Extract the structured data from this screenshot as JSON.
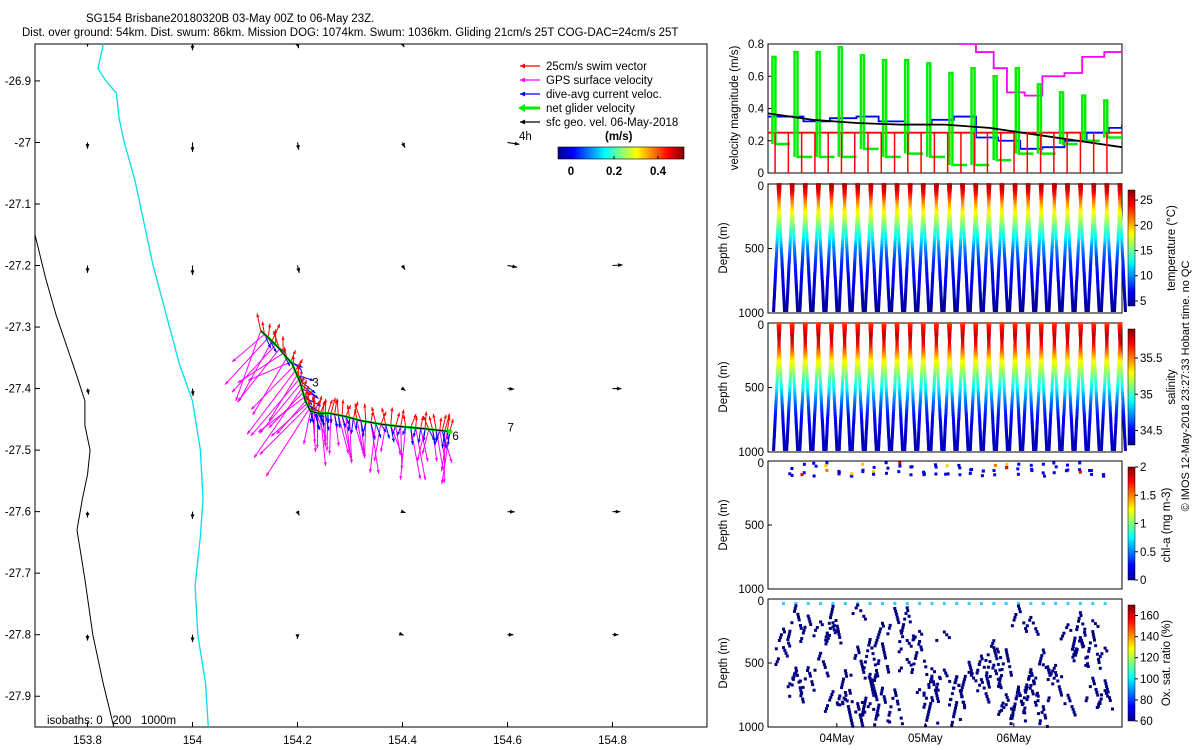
{
  "figure": {
    "title_line1": "SG154 Brisbane20180320B 03-May 00Z to 06-May 23Z.",
    "title_line2": "Dist. over ground: 54km. Dist. swum: 86km. Mission DOG: 1074km. Swum: 1036km. Gliding 21cm/s 25T COG-DAC=24cm/s 25T",
    "copyright": "© IMOS 12-May-2018 23:27:33 Hobart time. no QC",
    "colors": {
      "swim": "#ff0000",
      "gps": "#ff00ff",
      "dac": "#0000ff",
      "net": "#00ee00",
      "geo": "#000000",
      "coast": "#00ddee",
      "iso": "#000000"
    }
  },
  "chart_data": [
    {
      "id": "map",
      "type": "scatter",
      "title": "glider track map",
      "xlabel": "",
      "ylabel": "",
      "xlim": [
        153.7,
        154.98
      ],
      "ylim": [
        -27.95,
        -26.84
      ],
      "x_ticks": [
        153.8,
        154,
        154.2,
        154.4,
        154.6,
        154.8
      ],
      "x_tick_labels": [
        "153.8",
        "154",
        "154.2",
        "154.4",
        "154.6",
        "154.8"
      ],
      "y_ticks": [
        -26.9,
        -27,
        -27.1,
        -27.2,
        -27.3,
        -27.4,
        -27.5,
        -27.6,
        -27.7,
        -27.8,
        -27.9
      ],
      "y_tick_labels": [
        "-26.9",
        "-27",
        "-27.1",
        "-27.2",
        "-27.3",
        "-27.4",
        "-27.5",
        "-27.6",
        "-27.7",
        "-27.8",
        "-27.9"
      ],
      "legend": {
        "placement": "top-right",
        "entries": [
          "25cm/s swim vector",
          "GPS surface velocity",
          "dive-avg current veloc.",
          "net glider velocity",
          "sfc geo. vel. 06-May-2018"
        ],
        "time_label": "4h"
      },
      "colorbar": {
        "label": "(m/s)",
        "ticks": [
          "0",
          "0.2",
          "0.4"
        ],
        "range": [
          0,
          0.5
        ]
      },
      "isobath_label": "isobaths: 0   200   1000m",
      "track": {
        "lon": [
          154.13,
          154.16,
          154.19,
          154.205,
          154.215,
          154.225,
          154.24,
          154.26,
          154.29,
          154.32,
          154.36,
          154.4,
          154.44,
          154.47,
          154.49
        ],
        "lat": [
          -27.306,
          -27.33,
          -27.36,
          -27.39,
          -27.42,
          -27.437,
          -27.44,
          -27.44,
          -27.445,
          -27.452,
          -27.458,
          -27.462,
          -27.465,
          -27.468,
          -27.47
        ]
      },
      "day_markers": [
        {
          "label": "3",
          "lon": 154.228,
          "lat": -27.39
        },
        {
          "label": "6",
          "lon": 154.495,
          "lat": -27.477
        },
        {
          "label": "7",
          "lon": 154.6,
          "lat": -27.463
        }
      ],
      "geo_vectors": [
        {
          "lon": 153.8,
          "lat": -26.84,
          "u": 0,
          "v": -0.12
        },
        {
          "lon": 154.0,
          "lat": -26.84,
          "u": 0,
          "v": -0.3
        },
        {
          "lon": 154.2,
          "lat": -26.84,
          "u": 0.02,
          "v": -0.2
        },
        {
          "lon": 154.4,
          "lat": -26.84,
          "u": 0.03,
          "v": -0.15
        },
        {
          "lon": 153.8,
          "lat": -27.0,
          "u": 0,
          "v": -0.3
        },
        {
          "lon": 154.0,
          "lat": -27.0,
          "u": 0,
          "v": -0.45
        },
        {
          "lon": 154.2,
          "lat": -27.0,
          "u": 0.02,
          "v": -0.35
        },
        {
          "lon": 154.4,
          "lat": -27.0,
          "u": 0.04,
          "v": -0.25
        },
        {
          "lon": 154.6,
          "lat": -27.0,
          "u": 0.2,
          "v": -0.09
        },
        {
          "lon": 153.8,
          "lat": -27.2,
          "u": 0,
          "v": -0.35
        },
        {
          "lon": 154.0,
          "lat": -27.2,
          "u": 0,
          "v": -0.45
        },
        {
          "lon": 154.2,
          "lat": -27.2,
          "u": 0.03,
          "v": -0.35
        },
        {
          "lon": 154.4,
          "lat": -27.2,
          "u": 0.04,
          "v": -0.2
        },
        {
          "lon": 154.6,
          "lat": -27.2,
          "u": 0.16,
          "v": -0.08
        },
        {
          "lon": 154.8,
          "lat": -27.2,
          "u": 0.17,
          "v": 0.03
        },
        {
          "lon": 153.8,
          "lat": -27.4,
          "u": 0.02,
          "v": -0.28
        },
        {
          "lon": 154.0,
          "lat": -27.4,
          "u": 0.01,
          "v": -0.35
        },
        {
          "lon": 154.4,
          "lat": -27.4,
          "u": 0.05,
          "v": -0.1
        },
        {
          "lon": 154.6,
          "lat": -27.4,
          "u": 0.11,
          "v": -0.03
        },
        {
          "lon": 154.8,
          "lat": -27.4,
          "u": 0.15,
          "v": 0.0
        },
        {
          "lon": 153.8,
          "lat": -27.6,
          "u": 0,
          "v": -0.28
        },
        {
          "lon": 154.0,
          "lat": -27.6,
          "u": 0,
          "v": -0.35
        },
        {
          "lon": 154.2,
          "lat": -27.6,
          "u": 0.03,
          "v": -0.18
        },
        {
          "lon": 154.4,
          "lat": -27.6,
          "u": 0.05,
          "v": -0.05
        },
        {
          "lon": 154.6,
          "lat": -27.6,
          "u": 0.12,
          "v": -0.01
        },
        {
          "lon": 154.8,
          "lat": -27.6,
          "u": 0.13,
          "v": 0.0
        },
        {
          "lon": 153.8,
          "lat": -27.8,
          "u": 0,
          "v": -0.28
        },
        {
          "lon": 154.0,
          "lat": -27.8,
          "u": 0,
          "v": -0.35
        },
        {
          "lon": 154.2,
          "lat": -27.8,
          "u": 0,
          "v": -0.2
        },
        {
          "lon": 154.4,
          "lat": -27.8,
          "u": 0.02,
          "v": -0.02
        },
        {
          "lon": 154.6,
          "lat": -27.8,
          "u": 0.1,
          "v": 0.0
        },
        {
          "lon": 154.8,
          "lat": -27.8,
          "u": 0.1,
          "v": 0.0
        }
      ],
      "isobath_0m": {
        "lon": [
          153.83,
          153.82,
          153.835,
          153.855,
          153.86,
          153.87,
          153.89,
          153.905,
          153.925,
          153.95,
          153.975,
          154.0,
          154.015,
          154.02,
          154.015,
          154.005,
          154.01,
          154.025,
          154.03
        ],
        "lat": [
          -26.84,
          -26.88,
          -26.9,
          -26.92,
          -26.96,
          -27.0,
          -27.06,
          -27.12,
          -27.2,
          -27.28,
          -27.36,
          -27.42,
          -27.5,
          -27.58,
          -27.64,
          -27.72,
          -27.8,
          -27.88,
          -27.95
        ]
      },
      "isobath_200m": {
        "lon": [
          153.7,
          153.72,
          153.74,
          153.76,
          153.78,
          153.795,
          153.795,
          153.805,
          153.8,
          153.79,
          153.78,
          153.795,
          153.81,
          153.83,
          153.85
        ],
        "lat": [
          -27.15,
          -27.22,
          -27.28,
          -27.33,
          -27.38,
          -27.42,
          -27.46,
          -27.5,
          -27.54,
          -27.58,
          -27.63,
          -27.71,
          -27.8,
          -27.88,
          -27.95
        ]
      },
      "velocity_magnitudes_ms": {
        "swim": [
          0.22,
          0.25,
          0.25,
          0.24,
          0.26,
          0.24,
          0.25,
          0.25
        ],
        "dac": [
          0.18,
          0.22,
          0.25,
          0.28,
          0.3,
          0.3,
          0.29,
          0.27
        ]
      }
    },
    {
      "id": "velocity",
      "type": "line",
      "title": "",
      "ylabel": "velocity magnitude (m/s)",
      "xlim": [
        0,
        4
      ],
      "ylim": [
        0,
        0.8
      ],
      "y_ticks": [
        0,
        0.2,
        0.4,
        0.6,
        0.8
      ],
      "y_tick_labels": [
        "0",
        "0.2",
        "0.4",
        "0.6",
        "0.8"
      ],
      "series": [
        {
          "name": "25cm/s swim vector",
          "color": "#ff0000",
          "style": "step",
          "x": [
            0,
            4
          ],
          "values": [
            0.25,
            0.25
          ]
        },
        {
          "name": "GPS surface velocity",
          "color": "#ff00ff",
          "style": "step",
          "x": [
            2.15,
            2.35,
            2.55,
            2.7,
            2.9,
            3.1,
            3.35,
            3.55,
            3.8,
            4.0
          ],
          "values": [
            0.8,
            0.75,
            0.65,
            0.5,
            0.48,
            0.6,
            0.62,
            0.72,
            0.75,
            0.8
          ]
        },
        {
          "name": "dive-avg current veloc.",
          "color": "#0000ff",
          "style": "step",
          "x": [
            0,
            0.4,
            0.7,
            1.0,
            1.25,
            1.55,
            1.85,
            2.1,
            2.35,
            2.6,
            2.85,
            3.1,
            3.35,
            3.6,
            3.85,
            4.0
          ],
          "values": [
            0.35,
            0.32,
            0.34,
            0.35,
            0.32,
            0.3,
            0.33,
            0.35,
            0.22,
            0.2,
            0.15,
            0.16,
            0.2,
            0.25,
            0.28,
            0.3
          ]
        },
        {
          "name": "net glider velocity",
          "color": "#00ee00",
          "style": "spikes",
          "x": [
            0.05,
            0.3,
            0.55,
            0.8,
            1.05,
            1.3,
            1.55,
            1.8,
            2.05,
            2.3,
            2.55,
            2.8,
            3.05,
            3.3,
            3.55,
            3.8
          ],
          "values": [
            0.18,
            0.1,
            0.1,
            0.1,
            0.15,
            0.1,
            0.12,
            0.1,
            0.05,
            0.05,
            0.08,
            0.12,
            0.12,
            0.18,
            0.2,
            0.22
          ],
          "peaks": [
            0.72,
            0.75,
            0.75,
            0.78,
            0.73,
            0.7,
            0.7,
            0.68,
            0.62,
            0.65,
            0.6,
            0.65,
            0.55,
            0.5,
            0.48,
            0.45
          ]
        },
        {
          "name": "sfc geo. vel. 06-May-2018",
          "color": "#000000",
          "style": "line",
          "x": [
            0,
            0.5,
            1.0,
            1.5,
            2.0,
            2.5,
            3.0,
            3.5,
            4.0
          ],
          "values": [
            0.37,
            0.33,
            0.31,
            0.3,
            0.3,
            0.28,
            0.24,
            0.2,
            0.16
          ]
        }
      ]
    },
    {
      "id": "temperature",
      "type": "heatmap",
      "ylabel": "Depth (m)",
      "zlabel": "temperature (°C)",
      "ylim": [
        1000,
        0
      ],
      "y_ticks": [
        0,
        500,
        1000
      ],
      "y_tick_labels": [
        "0",
        "500",
        "1000"
      ],
      "z_range": [
        4,
        27
      ],
      "z_ticks": [
        5,
        10,
        15,
        20,
        25
      ],
      "z_tick_labels": [
        "5",
        "10",
        "15",
        "20",
        "25"
      ],
      "profile_depths_m": [
        0,
        50,
        100,
        150,
        200,
        300,
        400,
        500,
        600,
        700,
        800,
        900,
        1000
      ],
      "profile_values": [
        26,
        25,
        23,
        21,
        19,
        16,
        13,
        10,
        8,
        7,
        6,
        5,
        4.5
      ],
      "n_dives": 27
    },
    {
      "id": "salinity",
      "type": "heatmap",
      "ylabel": "Depth (m)",
      "zlabel": "salinity",
      "ylim": [
        1000,
        0
      ],
      "y_ticks": [
        0,
        500,
        1000
      ],
      "y_tick_labels": [
        "0",
        "500",
        "1000"
      ],
      "z_range": [
        34.3,
        35.9
      ],
      "z_ticks": [
        34.5,
        35,
        35.5
      ],
      "z_tick_labels": [
        "34.5",
        "35",
        "35.5"
      ],
      "profile_depths_m": [
        0,
        50,
        100,
        150,
        200,
        300,
        400,
        500,
        600,
        700,
        800,
        900,
        1000
      ],
      "profile_values": [
        35.6,
        35.7,
        35.8,
        35.75,
        35.6,
        35.3,
        35.1,
        34.9,
        34.7,
        34.55,
        34.45,
        34.4,
        34.4
      ],
      "n_dives": 27
    },
    {
      "id": "chla",
      "type": "scatter",
      "ylabel": "Depth (m)",
      "zlabel": "chl-a (mg m-3)",
      "ylim": [
        1000,
        0
      ],
      "y_ticks": [
        0,
        500,
        1000
      ],
      "y_tick_labels": [
        "0",
        "500",
        "1000"
      ],
      "z_range": [
        0,
        2
      ],
      "z_ticks": [
        0,
        0.5,
        1,
        1.5,
        2
      ],
      "z_tick_labels": [
        "0",
        "0.5",
        "1",
        "1.5",
        "2"
      ],
      "n_dives": 27,
      "depth_range_m": [
        0,
        110
      ]
    },
    {
      "id": "oxygen",
      "type": "scatter",
      "ylabel": "Depth (m)",
      "zlabel": "Ox. sat. ratio (%)",
      "ylim": [
        1000,
        0
      ],
      "y_ticks": [
        0,
        500,
        1000
      ],
      "y_tick_labels": [
        "0",
        "500",
        "1000"
      ],
      "z_range": [
        60,
        170
      ],
      "z_ticks": [
        60,
        80,
        100,
        120,
        140,
        160
      ],
      "z_tick_labels": [
        "60",
        "80",
        "100",
        "120",
        "140",
        "160"
      ],
      "x_ticks": [
        1,
        2,
        3
      ],
      "x_tick_labels": [
        "04May",
        "05May",
        "06May"
      ],
      "n_dives": 27
    }
  ]
}
